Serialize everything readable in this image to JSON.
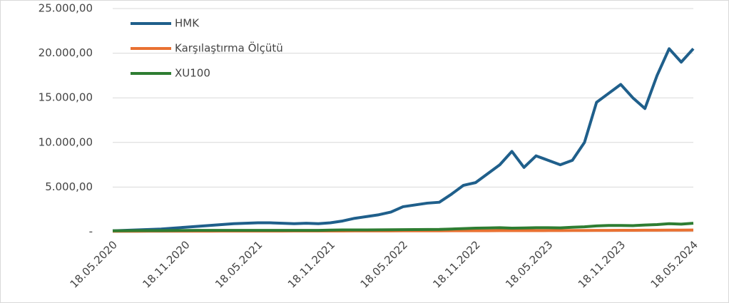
{
  "chart_data": {
    "type": "line",
    "categories": [
      "18.05.2020",
      null,
      null,
      null,
      null,
      null,
      "18.11.2020",
      null,
      null,
      null,
      null,
      null,
      "18.05.2021",
      null,
      null,
      null,
      null,
      null,
      "18.11.2021",
      null,
      null,
      null,
      null,
      null,
      "18.05.2022",
      null,
      null,
      null,
      null,
      null,
      "18.11.2022",
      null,
      null,
      null,
      null,
      null,
      "18.05.2023",
      null,
      null,
      null,
      null,
      null,
      "18.11.2023",
      null,
      null,
      null,
      null,
      null,
      "18.05.2024"
    ],
    "series": [
      {
        "name": "HMK",
        "color": "#1f5f8b",
        "values": [
          100,
          150,
          200,
          250,
          300,
          400,
          500,
          600,
          700,
          800,
          900,
          950,
          1000,
          1000,
          950,
          900,
          950,
          900,
          1000,
          1200,
          1500,
          1700,
          1900,
          2200,
          2800,
          3000,
          3200,
          3300,
          4200,
          5200,
          5500,
          6500,
          7500,
          9000,
          7200,
          8500,
          8000,
          7500,
          8000,
          10000,
          14500,
          15500,
          16500,
          15000,
          13800,
          17500,
          20500,
          19000,
          20500
        ]
      },
      {
        "name": "Karşılaştırma Ölçütü",
        "color": "#e97132",
        "values": [
          50,
          50,
          50,
          55,
          55,
          55,
          60,
          60,
          60,
          65,
          65,
          65,
          70,
          70,
          70,
          75,
          75,
          75,
          80,
          80,
          85,
          85,
          90,
          90,
          95,
          95,
          100,
          100,
          105,
          105,
          110,
          110,
          115,
          115,
          120,
          120,
          125,
          130,
          135,
          140,
          145,
          150,
          155,
          160,
          165,
          170,
          175,
          180,
          190
        ]
      },
      {
        "name": "XU100",
        "color": "#2e7d32",
        "values": [
          100,
          110,
          120,
          120,
          120,
          130,
          140,
          150,
          150,
          150,
          150,
          150,
          150,
          150,
          150,
          150,
          150,
          150,
          180,
          200,
          200,
          200,
          210,
          220,
          230,
          240,
          250,
          260,
          300,
          350,
          400,
          420,
          450,
          400,
          420,
          450,
          450,
          430,
          500,
          550,
          650,
          700,
          700,
          680,
          750,
          800,
          900,
          850,
          950
        ]
      }
    ],
    "ylim": [
      0,
      25000
    ],
    "yticks": [
      {
        "value": 0,
        "label": "-"
      },
      {
        "value": 5000,
        "label": "5.000,00"
      },
      {
        "value": 10000,
        "label": "10.000,00"
      },
      {
        "value": 15000,
        "label": "15.000,00"
      },
      {
        "value": 20000,
        "label": "20.000,00"
      },
      {
        "value": 25000,
        "label": "25.000,00"
      }
    ],
    "grid": true,
    "legend": "top-left"
  }
}
